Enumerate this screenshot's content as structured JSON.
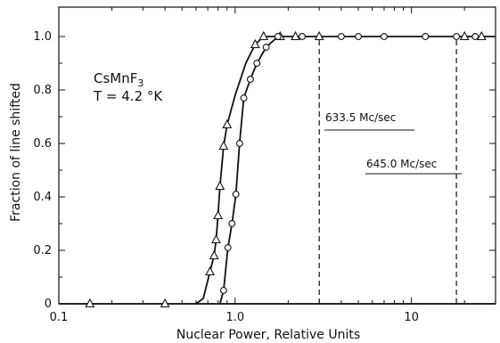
{
  "chart_data": {
    "type": "line",
    "xscale": "log",
    "xlim": [
      0.1,
      30
    ],
    "ylim": [
      0,
      1.05
    ],
    "xticks": [
      {
        "value": 0.1,
        "label": "0.1"
      },
      {
        "value": 1.0,
        "label": "1.0"
      },
      {
        "value": 10,
        "label": "10"
      }
    ],
    "yticks": [
      {
        "value": 0,
        "label": "0"
      },
      {
        "value": 0.2,
        "label": "0.2"
      },
      {
        "value": 0.4,
        "label": "0.4"
      },
      {
        "value": 0.6,
        "label": "0.6"
      },
      {
        "value": 0.8,
        "label": "0.8"
      },
      {
        "value": 1.0,
        "label": "1.0"
      }
    ],
    "xlabel": "Nuclear Power, Relative Units",
    "ylabel": "Fraction of line shifted",
    "sample": {
      "compound": "CsMnF",
      "subscript": "3",
      "temperature": "T = 4.2 °K"
    },
    "series": [
      {
        "marker": "triangle",
        "style": "solid",
        "x": [
          0.15,
          0.4,
          0.72,
          0.76,
          0.78,
          0.8,
          0.82,
          0.86,
          0.9,
          1.3,
          1.45,
          1.8,
          2.2,
          3.0,
          20,
          25
        ],
        "y": [
          0,
          0,
          0.12,
          0.18,
          0.24,
          0.33,
          0.44,
          0.59,
          0.67,
          0.97,
          1.0,
          1.0,
          1.0,
          1.0,
          1.0,
          1.0
        ]
      },
      {
        "marker": "circle",
        "style": "solid",
        "x": [
          0.86,
          0.91,
          0.96,
          1.01,
          1.06,
          1.12,
          1.22,
          1.33,
          1.5,
          1.75,
          2.4,
          4.0,
          5.0,
          7.0,
          12,
          18,
          23
        ],
        "y": [
          0.05,
          0.21,
          0.3,
          0.41,
          0.6,
          0.77,
          0.84,
          0.9,
          0.96,
          1.0,
          1.0,
          1.0,
          1.0,
          1.0,
          1.0,
          1.0,
          1.0
        ]
      }
    ],
    "annotations": [
      {
        "label": "633.5 Mc/sec",
        "x": 3.0,
        "style": "dashed"
      },
      {
        "label": "645.0 Mc/sec",
        "x": 18.0,
        "style": "dashed"
      }
    ]
  }
}
